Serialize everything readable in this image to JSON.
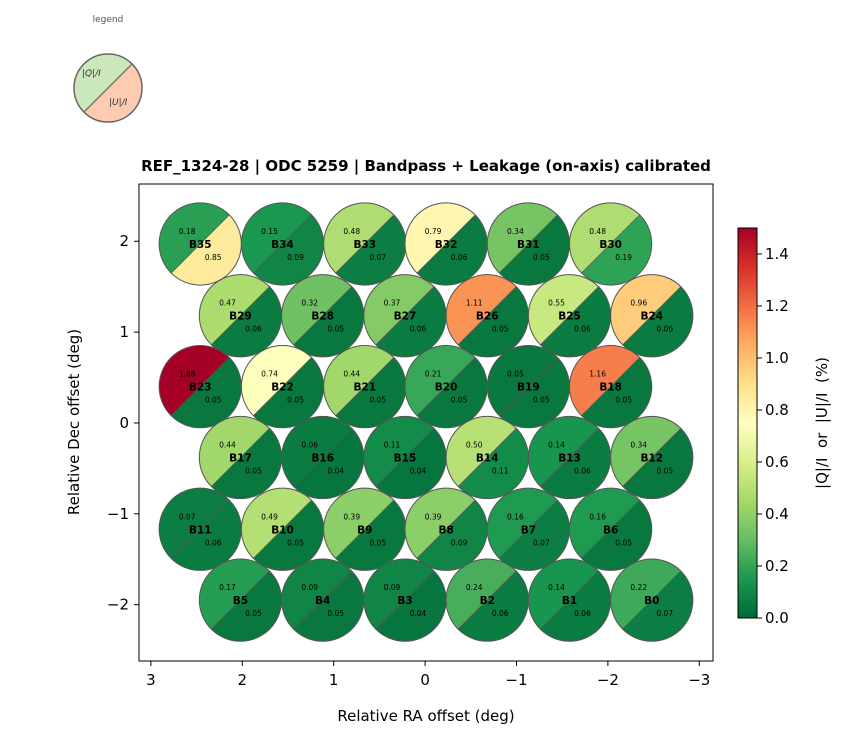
{
  "chart_data": {
    "type": "scatter",
    "title": "REF_1324-28  |  ODC 5259  |  Bandpass + Leakage (on-axis) calibrated",
    "xlabel": "Relative RA offset (deg)",
    "ylabel": "Relative Dec offset (deg)",
    "xlim": [
      3.13,
      -3.15
    ],
    "ylim": [
      -2.62,
      2.63
    ],
    "xticks": [
      3,
      2,
      1,
      0,
      -1,
      -2,
      -3
    ],
    "xtick_labels": [
      "3",
      "2",
      "1",
      "0",
      "−1",
      "−2",
      "−3"
    ],
    "yticks": [
      2,
      1,
      0,
      -1,
      -2
    ],
    "ytick_labels": [
      "2",
      "1",
      "0",
      "−1",
      "−2"
    ],
    "colorbar": {
      "label": "|Q|/I  or  |U|/I  (%)",
      "colormap": "RdYlGn_r",
      "range": [
        0,
        1.5
      ],
      "ticks": [
        0.0,
        0.2,
        0.4,
        0.6,
        0.8,
        1.0,
        1.2,
        1.4
      ],
      "tick_labels": [
        "0.0",
        "0.2",
        "0.4",
        "0.6",
        "0.8",
        "1.0",
        "1.2",
        "1.4"
      ]
    },
    "legend": {
      "title": "legend",
      "upper_label": "|Q|/I",
      "lower_label": "|U|/I",
      "upper_color": "#cbe8bd",
      "lower_color": "#fdcab2"
    },
    "beams": [
      {
        "name": "B35",
        "ra": 2.46,
        "dec": 1.97,
        "q": 0.18,
        "u": 0.85
      },
      {
        "name": "B34",
        "ra": 1.56,
        "dec": 1.97,
        "q": 0.15,
        "u": 0.09
      },
      {
        "name": "B33",
        "ra": 0.66,
        "dec": 1.97,
        "q": 0.48,
        "u": 0.07
      },
      {
        "name": "B32",
        "ra": -0.23,
        "dec": 1.97,
        "q": 0.79,
        "u": 0.06
      },
      {
        "name": "B31",
        "ra": -1.13,
        "dec": 1.97,
        "q": 0.34,
        "u": 0.05
      },
      {
        "name": "B30",
        "ra": -2.03,
        "dec": 1.97,
        "q": 0.48,
        "u": 0.19
      },
      {
        "name": "B29",
        "ra": 2.02,
        "dec": 1.18,
        "q": 0.47,
        "u": 0.06
      },
      {
        "name": "B28",
        "ra": 1.12,
        "dec": 1.18,
        "q": 0.32,
        "u": 0.05
      },
      {
        "name": "B27",
        "ra": 0.22,
        "dec": 1.18,
        "q": 0.37,
        "u": 0.06
      },
      {
        "name": "B26",
        "ra": -0.68,
        "dec": 1.18,
        "q": 1.11,
        "u": 0.05
      },
      {
        "name": "B25",
        "ra": -1.58,
        "dec": 1.18,
        "q": 0.55,
        "u": 0.06
      },
      {
        "name": "B24",
        "ra": -2.48,
        "dec": 1.18,
        "q": 0.96,
        "u": 0.06
      },
      {
        "name": "B23",
        "ra": 2.46,
        "dec": 0.4,
        "q": 1.88,
        "u": 0.05
      },
      {
        "name": "B22",
        "ra": 1.56,
        "dec": 0.4,
        "q": 0.74,
        "u": 0.05
      },
      {
        "name": "B21",
        "ra": 0.66,
        "dec": 0.4,
        "q": 0.44,
        "u": 0.05
      },
      {
        "name": "B20",
        "ra": -0.23,
        "dec": 0.4,
        "q": 0.21,
        "u": 0.05
      },
      {
        "name": "B19",
        "ra": -1.13,
        "dec": 0.4,
        "q": 0.05,
        "u": 0.05
      },
      {
        "name": "B18",
        "ra": -2.03,
        "dec": 0.4,
        "q": 1.16,
        "u": 0.05
      },
      {
        "name": "B17",
        "ra": 2.02,
        "dec": -0.38,
        "q": 0.44,
        "u": 0.05
      },
      {
        "name": "B16",
        "ra": 1.12,
        "dec": -0.38,
        "q": 0.06,
        "u": 0.04
      },
      {
        "name": "B15",
        "ra": 0.22,
        "dec": -0.38,
        "q": 0.11,
        "u": 0.04
      },
      {
        "name": "B14",
        "ra": -0.68,
        "dec": -0.38,
        "q": 0.5,
        "u": 0.11
      },
      {
        "name": "B13",
        "ra": -1.58,
        "dec": -0.38,
        "q": 0.14,
        "u": 0.06
      },
      {
        "name": "B12",
        "ra": -2.48,
        "dec": -0.38,
        "q": 0.34,
        "u": 0.05
      },
      {
        "name": "B11",
        "ra": 2.46,
        "dec": -1.17,
        "q": 0.07,
        "u": 0.06
      },
      {
        "name": "B10",
        "ra": 1.56,
        "dec": -1.17,
        "q": 0.49,
        "u": 0.05
      },
      {
        "name": "B9",
        "ra": 0.66,
        "dec": -1.17,
        "q": 0.39,
        "u": 0.05
      },
      {
        "name": "B8",
        "ra": -0.23,
        "dec": -1.17,
        "q": 0.39,
        "u": 0.09
      },
      {
        "name": "B7",
        "ra": -1.13,
        "dec": -1.17,
        "q": 0.16,
        "u": 0.07
      },
      {
        "name": "B6",
        "ra": -2.03,
        "dec": -1.17,
        "q": 0.16,
        "u": 0.05
      },
      {
        "name": "B5",
        "ra": 2.02,
        "dec": -1.95,
        "q": 0.17,
        "u": 0.05
      },
      {
        "name": "B4",
        "ra": 1.12,
        "dec": -1.95,
        "q": 0.09,
        "u": 0.05
      },
      {
        "name": "B3",
        "ra": 0.22,
        "dec": -1.95,
        "q": 0.09,
        "u": 0.04
      },
      {
        "name": "B2",
        "ra": -0.68,
        "dec": -1.95,
        "q": 0.24,
        "u": 0.06
      },
      {
        "name": "B1",
        "ra": -1.58,
        "dec": -1.95,
        "q": 0.14,
        "u": 0.06
      },
      {
        "name": "B0",
        "ra": -2.48,
        "dec": -1.95,
        "q": 0.22,
        "u": 0.07
      }
    ],
    "beam_radius_deg": 0.45
  }
}
